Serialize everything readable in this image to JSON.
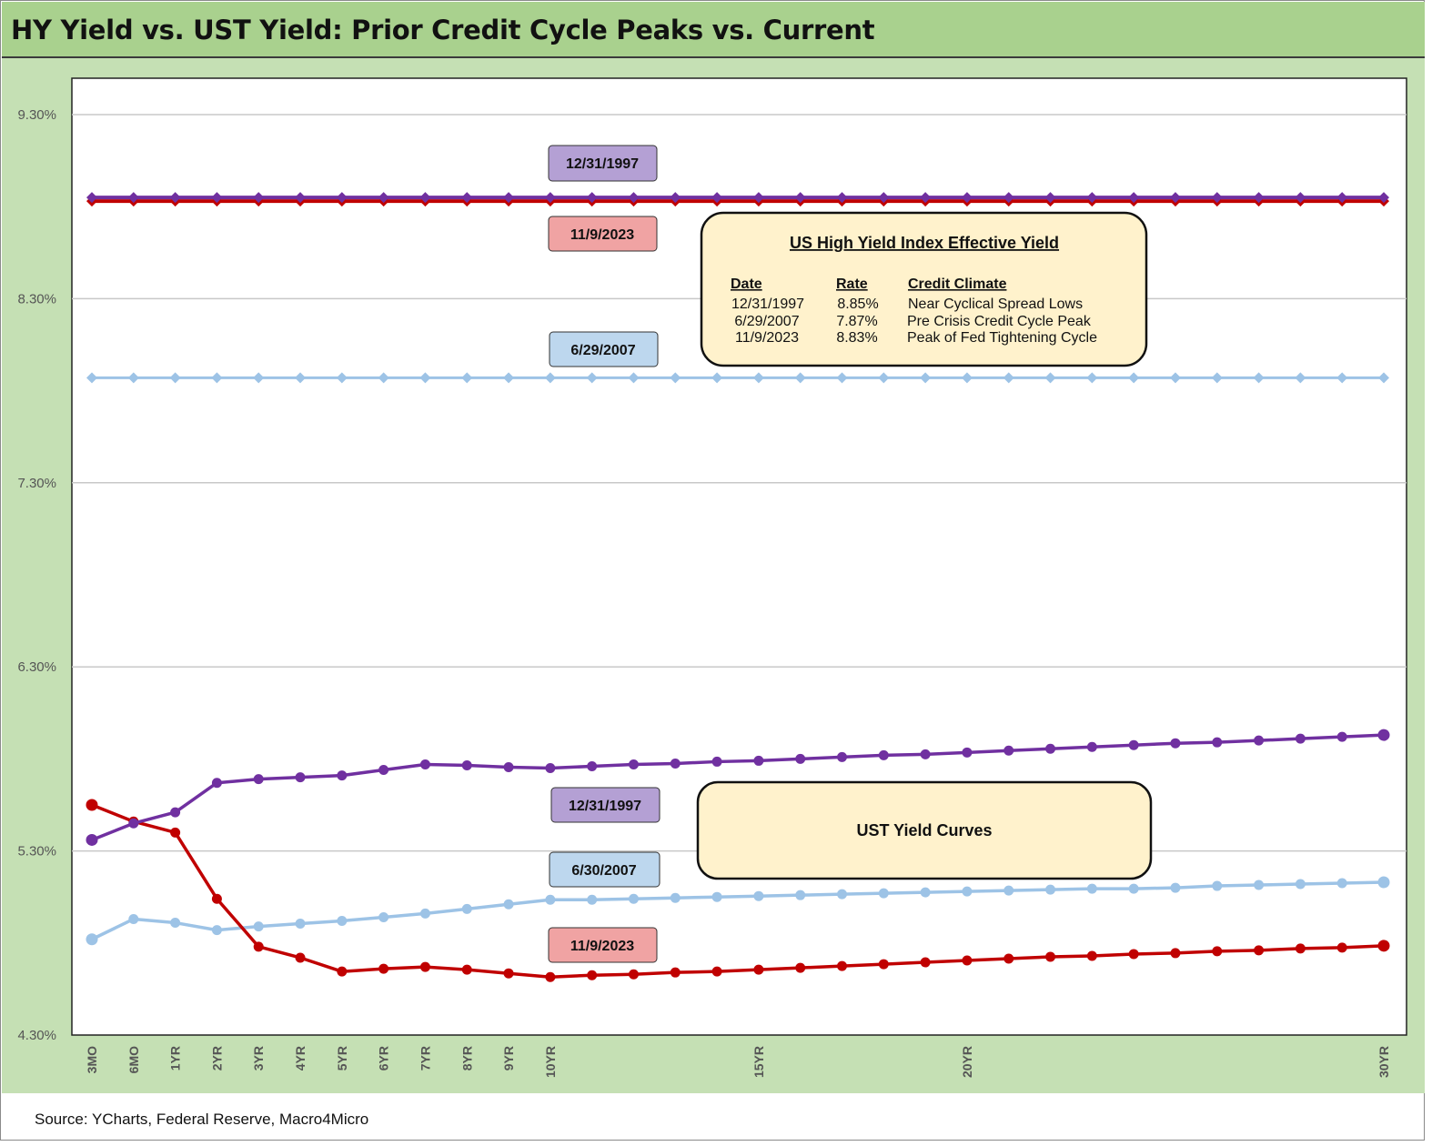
{
  "title": "HY Yield vs. UST Yield: Prior Credit Cycle Peaks vs. Current",
  "source": "Source: YCharts, Federal Reserve, Macro4Micro",
  "colors": {
    "dec1997": "#7030a0",
    "jun2007": "#9dc3e6",
    "nov2023": "#c00000",
    "label_1997_fill": "#b4a0d4",
    "label_2007_fill": "#bdd7ee",
    "label_2023_fill": "#f0a3a3",
    "box_fill": "#fff2cc"
  },
  "chart_data": {
    "type": "line",
    "title": "HY Yield vs. UST Yield: Prior Credit Cycle Peaks vs. Current",
    "xlabel": "",
    "ylabel": "",
    "ylim": [
      4.3,
      9.3
    ],
    "y_ticks": [
      "9.30%",
      "8.30%",
      "7.30%",
      "6.30%",
      "5.30%",
      "4.30%"
    ],
    "y_tick_values": [
      9.3,
      8.3,
      7.3,
      6.3,
      5.3,
      4.3
    ],
    "x_ticks": [
      "3MO",
      "6MO",
      "1YR",
      "2YR",
      "3YR",
      "4YR",
      "5YR",
      "6YR",
      "7YR",
      "8YR",
      "9YR",
      "10YR",
      "15YR",
      "20YR",
      "30YR"
    ],
    "x_tick_index": [
      0,
      1,
      2,
      3,
      4,
      5,
      6,
      7,
      8,
      9,
      10,
      11,
      16,
      21,
      31
    ],
    "point_count": 32,
    "grid": true,
    "legend": "none",
    "hy_series": [
      {
        "key": "dec1997",
        "label": "12/31/1997",
        "value": 8.85
      },
      {
        "key": "jun2007",
        "label": "6/29/2007",
        "value": 7.87
      },
      {
        "key": "nov2023",
        "label": "11/9/2023",
        "value": 8.83
      }
    ],
    "ust_series": [
      {
        "key": "dec1997",
        "label": "12/31/1997",
        "values": [
          5.36,
          5.45,
          5.51,
          5.67,
          5.69,
          5.7,
          5.71,
          5.74,
          5.77,
          5.765,
          5.755,
          5.75,
          5.76,
          5.77,
          5.775,
          5.785,
          5.79,
          5.8,
          5.81,
          5.82,
          5.825,
          5.835,
          5.845,
          5.855,
          5.865,
          5.875,
          5.885,
          5.89,
          5.9,
          5.91,
          5.92,
          5.93
        ]
      },
      {
        "key": "jun2007",
        "label": "6/30/2007",
        "values": [
          4.82,
          4.93,
          4.91,
          4.87,
          4.89,
          4.905,
          4.92,
          4.94,
          4.96,
          4.985,
          5.01,
          5.035,
          5.035,
          5.04,
          5.045,
          5.05,
          5.055,
          5.06,
          5.065,
          5.07,
          5.075,
          5.08,
          5.085,
          5.09,
          5.095,
          5.095,
          5.1,
          5.11,
          5.115,
          5.12,
          5.125,
          5.13
        ]
      },
      {
        "key": "nov2023",
        "label": "11/9/2023",
        "values": [
          5.55,
          5.46,
          5.4,
          5.04,
          4.78,
          4.72,
          4.645,
          4.66,
          4.67,
          4.655,
          4.635,
          4.615,
          4.625,
          4.63,
          4.64,
          4.645,
          4.655,
          4.665,
          4.675,
          4.685,
          4.695,
          4.705,
          4.715,
          4.725,
          4.73,
          4.74,
          4.745,
          4.755,
          4.76,
          4.77,
          4.775,
          4.785
        ]
      }
    ]
  },
  "labels": {
    "hy_1997": "12/31/1997",
    "hy_2023": "11/9/2023",
    "hy_2007": "6/29/2007",
    "ust_1997": "12/31/1997",
    "ust_2007": "6/30/2007",
    "ust_2023": "11/9/2023"
  },
  "hy_box": {
    "title": "US High Yield Index Effective Yield",
    "headers": [
      "Date",
      "Rate",
      "Credit Climate"
    ],
    "rows": [
      [
        "12/31/1997",
        "8.85%",
        "Near Cyclical Spread Lows"
      ],
      [
        "6/29/2007",
        "7.87%",
        "Pre Crisis Credit Cycle Peak"
      ],
      [
        "11/9/2023",
        "8.83%",
        "Peak of Fed Tightening Cycle"
      ]
    ]
  },
  "ust_box": {
    "title": "UST Yield Curves"
  }
}
